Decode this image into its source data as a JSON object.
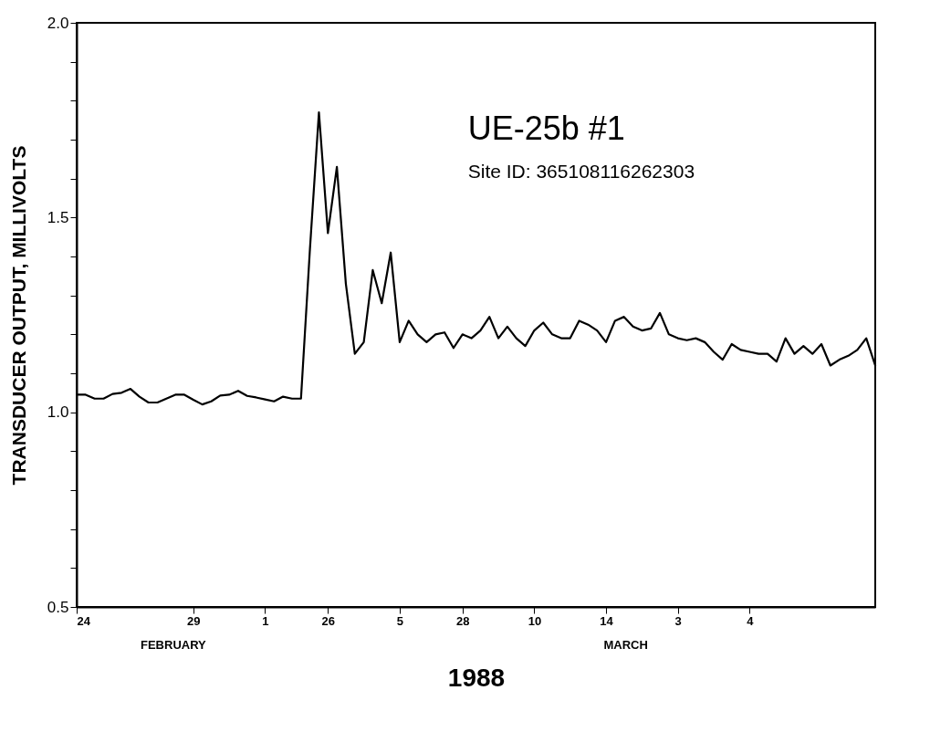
{
  "chart_data": {
    "type": "line",
    "xlabel": "1988",
    "ylabel": "TRANSDUCER OUTPUT, MILLIVOLTS",
    "annotations": [
      "UE-25b #1",
      "Site ID: 365108116262303",
      "FEBRUARY",
      "MARCH"
    ],
    "categories": [
      "24",
      null,
      null,
      null,
      null,
      null,
      null,
      null,
      null,
      null,
      null,
      null,
      null,
      "29",
      null,
      null,
      null,
      null,
      null,
      null,
      null,
      "1",
      null,
      null,
      null,
      null,
      null,
      null,
      "26",
      null,
      null,
      null,
      null,
      null,
      null,
      null,
      "5",
      null,
      null,
      null,
      null,
      null,
      null,
      "28",
      null,
      null,
      null,
      null,
      null,
      null,
      null,
      "10",
      null,
      null,
      null,
      null,
      null,
      null,
      null,
      "14",
      null,
      null,
      null,
      null,
      null,
      null,
      null,
      "3",
      null,
      null,
      null,
      null,
      null,
      null,
      null,
      "4",
      null,
      null,
      null,
      null,
      null,
      null,
      null,
      null,
      null,
      null,
      null,
      null,
      null,
      null
    ],
    "series": [
      {
        "color": "#000000",
        "values": [
          1.045,
          1.045,
          1.035,
          1.035,
          1.047,
          1.05,
          1.06,
          1.04,
          1.025,
          1.025,
          1.035,
          1.045,
          1.045,
          1.032,
          1.02,
          1.028,
          1.043,
          1.045,
          1.055,
          1.042,
          1.038,
          1.033,
          1.028,
          1.04,
          1.035,
          1.035,
          1.42,
          1.77,
          1.46,
          1.63,
          1.33,
          1.15,
          1.18,
          1.365,
          1.28,
          1.41,
          1.18,
          1.235,
          1.2,
          1.18,
          1.2,
          1.205,
          1.165,
          1.2,
          1.19,
          1.21,
          1.245,
          1.19,
          1.22,
          1.19,
          1.17,
          1.21,
          1.23,
          1.2,
          1.19,
          1.19,
          1.235,
          1.225,
          1.21,
          1.18,
          1.235,
          1.245,
          1.22,
          1.21,
          1.215,
          1.255,
          1.2,
          1.19,
          1.185,
          1.19,
          1.18,
          1.155,
          1.135,
          1.175,
          1.16,
          1.155,
          1.15,
          1.15,
          1.13,
          1.19,
          1.15,
          1.17,
          1.15,
          1.175,
          1.12,
          1.135,
          1.145,
          1.16,
          1.19,
          1.12
        ]
      }
    ],
    "ylim": [
      0.5,
      2.0
    ],
    "yticks": [
      0.5,
      {
        "value": 0.6,
        "label": null
      },
      {
        "value": 0.7,
        "label": null
      },
      {
        "value": 0.8,
        "label": null
      },
      {
        "value": 0.9,
        "label": null
      },
      {
        "value": 1.0,
        "label": "1.0"
      },
      {
        "value": 1.1,
        "label": null
      },
      {
        "value": 1.2,
        "label": null
      },
      {
        "value": 1.3,
        "label": null
      },
      {
        "value": 1.4,
        "label": null
      },
      1.5,
      {
        "value": 1.6,
        "label": null
      },
      {
        "value": 1.7,
        "label": null
      },
      {
        "value": 1.8,
        "label": null
      },
      {
        "value": 1.9,
        "label": null
      },
      {
        "value": 2.0,
        "label": "2.0"
      }
    ],
    "marker": "none",
    "line_style": "solid"
  }
}
